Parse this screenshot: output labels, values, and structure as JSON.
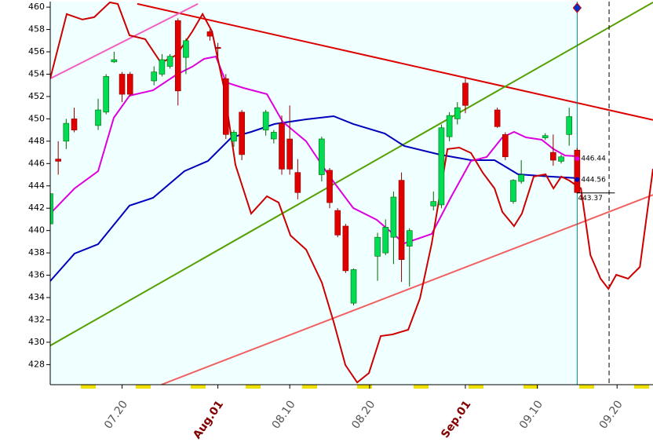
{
  "chart_data": {
    "type": "candlestick",
    "xlim": [
      -9,
      66.5
    ],
    "ylim": [
      426.2,
      460.5
    ],
    "yticks": [
      428,
      430,
      432,
      434,
      436,
      438,
      440,
      442,
      444,
      446,
      448,
      450,
      452,
      454,
      456,
      458,
      460
    ],
    "xticks": [
      {
        "value": 0,
        "label": "07.20"
      },
      {
        "value": 12,
        "label": "Aug.01",
        "color": "#800000"
      },
      {
        "value": 21,
        "label": "08.10"
      },
      {
        "value": 31,
        "label": "08.20"
      },
      {
        "value": 43,
        "label": "Sep.01",
        "color": "#800000"
      },
      {
        "value": 52,
        "label": "09.10"
      },
      {
        "value": 62,
        "label": "09.20"
      }
    ],
    "up_color": "#00dd55",
    "down_color": "#e00000",
    "candles": {
      "x": [
        -9,
        -8,
        -7,
        -6,
        -3,
        -2,
        -1,
        0,
        1,
        4,
        5,
        6,
        7,
        8,
        11,
        12,
        13,
        14,
        15,
        18,
        19,
        20,
        21,
        22,
        25,
        26,
        27,
        28,
        29,
        32,
        33,
        34,
        35,
        36,
        39,
        40,
        41,
        42,
        43,
        47,
        48,
        49,
        50,
        53,
        54,
        55,
        56,
        57
      ],
      "open": [
        440.6,
        446.4,
        448,
        450,
        449.4,
        450.6,
        455.1,
        454,
        454,
        453.4,
        454,
        454.7,
        458.8,
        455.5,
        457.8,
        456.4,
        453.6,
        448,
        450.6,
        449,
        448.2,
        449.6,
        448.2,
        445.2,
        445,
        445.4,
        441.8,
        440.4,
        433.5,
        437.7,
        438,
        439.4,
        444.5,
        438.6,
        442.2,
        442.3,
        448.4,
        450,
        453.2,
        450.8,
        448.6,
        442.6,
        444.4,
        448.3,
        447,
        446.2,
        448.6,
        447.2
      ],
      "close": [
        443.3,
        446.2,
        449.6,
        449,
        450.8,
        453.8,
        455.3,
        452.2,
        452.2,
        454.2,
        455.3,
        455.6,
        452.5,
        457,
        457.4,
        456.3,
        448.6,
        448.8,
        446.8,
        450.6,
        448.8,
        445.5,
        445.5,
        443.4,
        448.2,
        442.5,
        439.6,
        436.4,
        436.5,
        439.4,
        440.3,
        443,
        437.4,
        440,
        442.6,
        449.2,
        450.3,
        451,
        451.2,
        449.3,
        446.6,
        444.5,
        445,
        448.5,
        446.3,
        446.6,
        450.2,
        443.4
      ],
      "high": [
        443.5,
        448,
        450,
        451,
        451.8,
        454,
        456,
        454.2,
        454.2,
        454.7,
        455.8,
        455.8,
        459,
        457.2,
        458,
        456.8,
        454,
        449,
        450.8,
        450.8,
        449,
        450.3,
        451.2,
        446.4,
        448.4,
        445.6,
        442,
        440.6,
        436.6,
        439.8,
        441,
        443.5,
        445.2,
        440.2,
        443.5,
        449.5,
        450.6,
        451.5,
        453.6,
        451,
        448.8,
        444.6,
        446.3,
        448.7,
        448.6,
        446.8,
        451,
        447.4
      ],
      "low": [
        440.5,
        445,
        447.3,
        448.8,
        449,
        450.4,
        455,
        451.5,
        452,
        453,
        453.8,
        454.5,
        451.2,
        454,
        457,
        455.5,
        448.2,
        447.5,
        446.3,
        448.5,
        447.8,
        445,
        445,
        442.8,
        444.4,
        442,
        439.4,
        436.2,
        433.3,
        435.5,
        437.8,
        437,
        435.4,
        435,
        441.8,
        442,
        448,
        449.5,
        450.5,
        449.2,
        446.3,
        442.4,
        444.2,
        448.1,
        445.8,
        446,
        447.6,
        443.3
      ]
    },
    "lines": [
      {
        "color": "#0000bb",
        "x": [
          -9,
          -5.95,
          -3,
          0.93,
          3.88,
          7.81,
          10.76,
          13.71,
          16.17,
          19.12,
          23.06,
          26.5,
          28.95,
          32.9,
          35.35,
          39.77,
          43.7,
          46.65,
          49.6,
          53.55,
          57
        ],
        "values": [
          435.48,
          437.94,
          438.78,
          442.23,
          442.93,
          445.32,
          446.23,
          448.34,
          448.83,
          449.54,
          449.96,
          450.24,
          449.54,
          448.69,
          447.57,
          446.8,
          446.3,
          446.3,
          445.04,
          444.83,
          444.69
        ]
      },
      {
        "color": "#dd00dd",
        "x": [
          -9,
          -5.95,
          -3,
          -1.04,
          0.93,
          3.88,
          6.83,
          8.8,
          10.27,
          11.75,
          13.03,
          15.19,
          18.14,
          20.1,
          23.06,
          26,
          28.95,
          31.9,
          35.35,
          38.79,
          41.25,
          43.7,
          45.67,
          47.63,
          49.1,
          50.59,
          52.56,
          54.03,
          55.5,
          57
        ],
        "values": [
          441.52,
          443.77,
          445.32,
          450.1,
          452.07,
          452.56,
          453.96,
          454.67,
          455.37,
          455.58,
          453.26,
          452.77,
          452.21,
          449.75,
          447.99,
          444.83,
          442.02,
          440.96,
          438.85,
          439.7,
          443.07,
          446.23,
          446.58,
          448.34,
          448.83,
          448.34,
          448.13,
          447.29,
          446.72,
          446.65
        ]
      },
      {
        "color": "#cc0000",
        "x": [
          -9,
          -6.94,
          -4.97,
          -3.49,
          -1.53,
          -0.54,
          0.93,
          2.9,
          4.87,
          6.83,
          8.8,
          10.08,
          11.26,
          12.73,
          14.2,
          16.17,
          18.14,
          19.61,
          21.09,
          23.06,
          25.02,
          26.5,
          27.97,
          29.45,
          30.92,
          32.4,
          33.87,
          35.84,
          37.31,
          38.79,
          40.75,
          42.23,
          43.7,
          45.18,
          46.65,
          47.63,
          49.1,
          50.08,
          51.56,
          53.04,
          54.03,
          55.01,
          56,
          57.48,
          58.66,
          59.93,
          60.92,
          61.9,
          63.38,
          64.86,
          66.5
        ],
        "values": [
          453.61,
          459.38,
          458.89,
          459.1,
          460.43,
          460.29,
          457.48,
          457.13,
          455.02,
          455.72,
          457.83,
          459.38,
          457.83,
          452.91,
          445.88,
          441.52,
          443.07,
          442.51,
          439.56,
          438.29,
          435.34,
          431.82,
          427.96,
          426.4,
          427.25,
          430.56,
          430.7,
          431.12,
          433.93,
          438.85,
          447.29,
          447.43,
          446.94,
          445.18,
          443.77,
          441.66,
          440.4,
          441.52,
          444.83,
          445.04,
          443.77,
          444.83,
          444.48,
          443.77,
          437.8,
          435.69,
          434.78,
          436.04,
          435.69,
          436.74,
          445.53
        ]
      }
    ],
    "trendlines": [
      {
        "color": "#dd0000",
        "x": [
          1.9,
          66.5
        ],
        "values": [
          460.3,
          449.9
        ]
      },
      {
        "color": "#55a000",
        "x": [
          -9,
          66.5
        ],
        "values": [
          429.7,
          460.43
        ]
      },
      {
        "color": "#f060c0",
        "x": [
          -9,
          9.5
        ],
        "values": [
          453.6,
          460.3
        ]
      },
      {
        "color": "#f06060",
        "x": [
          4.9,
          66.5
        ],
        "values": [
          426.2,
          443.2
        ]
      }
    ],
    "cursor_x": 57,
    "forecast_x": 61,
    "price_labels": [
      {
        "value": 446.44,
        "color": "#dd00dd"
      },
      {
        "value": 444.56,
        "color": "#0000bb"
      },
      {
        "value": 443.37,
        "color": "#000000"
      }
    ]
  }
}
